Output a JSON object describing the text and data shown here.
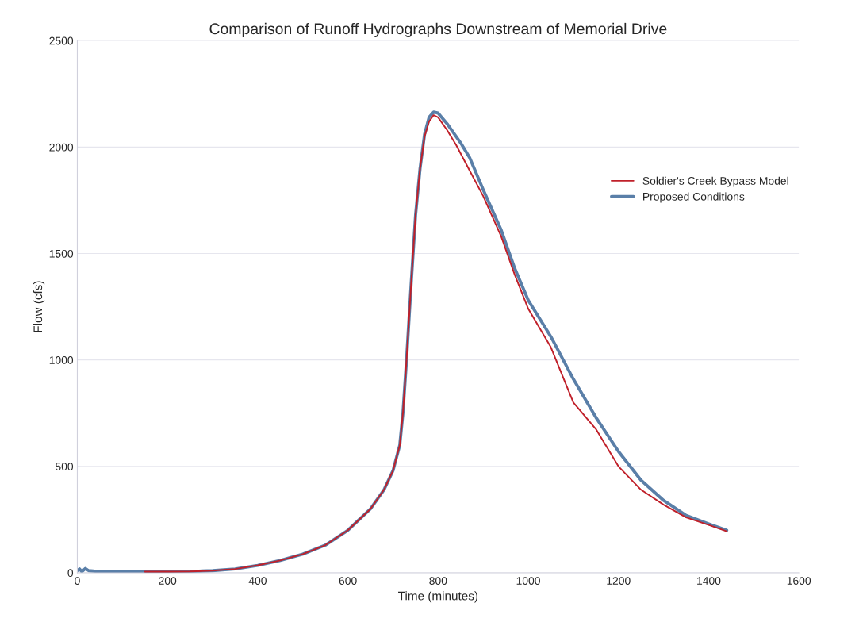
{
  "chart_data": {
    "type": "line",
    "title": "Comparison of Runoff Hydrographs Downstream of Memorial Drive",
    "xlabel": "Time (minutes)",
    "ylabel": "Flow (cfs)",
    "xlim": [
      0,
      1600
    ],
    "xticks": [
      0,
      200,
      400,
      600,
      800,
      1000,
      1200,
      1400,
      1600
    ],
    "ylim": [
      0,
      2500
    ],
    "yticks": [
      0,
      500,
      1000,
      1500,
      2000,
      2500
    ],
    "grid": "y",
    "legend": "right",
    "marker": "none",
    "line_style": "solid",
    "series": [
      {
        "name": "Soldier's Creek Bypass Model",
        "color": "#c0202a",
        "x": [
          150,
          200,
          250,
          300,
          350,
          400,
          450,
          500,
          550,
          600,
          650,
          680,
          700,
          715,
          722,
          730,
          740,
          750,
          760,
          770,
          780,
          790,
          800,
          820,
          840,
          850,
          870,
          900,
          940,
          970,
          1000,
          1050,
          1100,
          1150,
          1200,
          1250,
          1300,
          1350,
          1400,
          1440
        ],
        "values": [
          5,
          5,
          6,
          10,
          18,
          35,
          58,
          88,
          130,
          200,
          300,
          390,
          480,
          600,
          750,
          1000,
          1350,
          1680,
          1900,
          2050,
          2120,
          2150,
          2140,
          2080,
          2010,
          1970,
          1890,
          1770,
          1580,
          1400,
          1240,
          1060,
          800,
          675,
          500,
          390,
          320,
          260,
          225,
          195
        ]
      },
      {
        "name": "Proposed Conditions",
        "color": "#5a7fa8",
        "x": [
          0,
          5,
          10,
          18,
          25,
          35,
          50,
          100,
          150,
          200,
          250,
          300,
          350,
          400,
          450,
          500,
          550,
          600,
          650,
          680,
          700,
          715,
          722,
          730,
          740,
          750,
          760,
          770,
          780,
          790,
          800,
          820,
          850,
          870,
          900,
          940,
          970,
          1000,
          1050,
          1080,
          1100,
          1150,
          1200,
          1250,
          1300,
          1350,
          1400,
          1440
        ],
        "values": [
          10,
          18,
          5,
          20,
          10,
          8,
          5,
          5,
          5,
          5,
          6,
          10,
          18,
          35,
          58,
          88,
          130,
          200,
          300,
          390,
          480,
          600,
          750,
          1000,
          1350,
          1680,
          1900,
          2060,
          2140,
          2165,
          2160,
          2110,
          2020,
          1950,
          1800,
          1610,
          1430,
          1280,
          1110,
          990,
          910,
          730,
          570,
          435,
          340,
          270,
          230,
          200
        ]
      }
    ]
  }
}
